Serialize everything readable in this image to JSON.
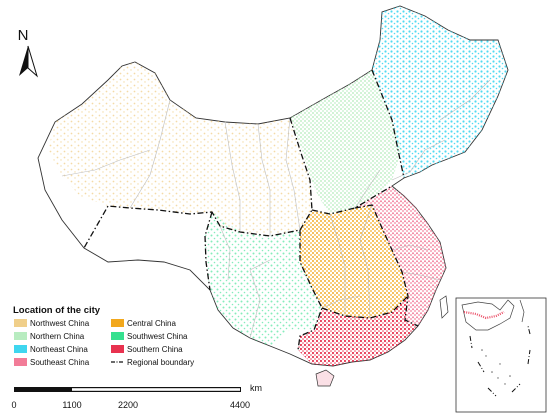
{
  "north_arrow": {
    "label": "N"
  },
  "legend": {
    "title": "Location of the city",
    "items": [
      {
        "label": "Northwest China",
        "color": "#f0cf8a",
        "kind": "swatch"
      },
      {
        "label": "Central China",
        "color": "#f2a81d",
        "kind": "swatch"
      },
      {
        "label": "Northern China",
        "color": "#b8ecc0",
        "kind": "swatch"
      },
      {
        "label": "Southwest China",
        "color": "#35e08f",
        "kind": "swatch"
      },
      {
        "label": "Northeast China",
        "color": "#3fd6ef",
        "kind": "swatch"
      },
      {
        "label": "Southern China",
        "color": "#e8324f",
        "kind": "swatch"
      },
      {
        "label": "Southeast China",
        "color": "#f27c98",
        "kind": "swatch"
      },
      {
        "label": "Regional boundary",
        "color": "#111111",
        "kind": "dashdot"
      }
    ]
  },
  "scale_bar": {
    "unit": "km",
    "ticks": [
      "0",
      "1100",
      "2200",
      "4400"
    ]
  },
  "colors": {
    "boundary": "#222222",
    "province": "#bdbdbd",
    "background": "#ffffff"
  }
}
